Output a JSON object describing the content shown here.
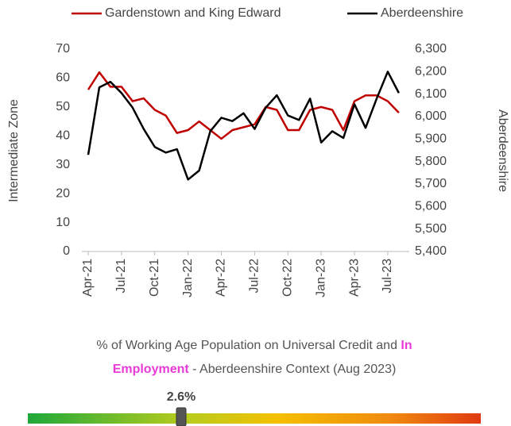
{
  "chart_data": {
    "type": "line",
    "categories": [
      "Apr-21",
      null,
      null,
      "Jul-21",
      null,
      null,
      "Oct-21",
      null,
      null,
      "Jan-22",
      null,
      null,
      "Apr-22",
      null,
      null,
      "Jul-22",
      null,
      null,
      "Oct-22",
      null,
      null,
      "Jan-23",
      null,
      null,
      "Apr-23",
      null,
      null,
      "Jul-23",
      null
    ],
    "series": [
      {
        "name": "Gardenstown and King Edward",
        "color": "#c00000",
        "values": [
          56,
          62,
          57,
          57,
          52,
          53,
          49,
          47,
          41,
          42,
          45,
          42,
          39,
          42,
          43,
          44,
          50,
          49,
          42,
          42,
          49,
          50,
          49,
          42,
          52,
          54,
          54,
          52,
          48
        ]
      },
      {
        "name": "Aberdeenshire",
        "color": "#000000",
        "axis": "y2",
        "values": [
          5830,
          6130,
          6155,
          6105,
          6040,
          5945,
          5865,
          5840,
          5855,
          5720,
          5760,
          5935,
          5995,
          5980,
          6015,
          5945,
          6040,
          6095,
          6005,
          5985,
          6080,
          5885,
          5935,
          5905,
          6055,
          5950,
          6080,
          6200,
          6105
        ]
      }
    ],
    "ylabel": "Intermediate Zone",
    "y2label": "Aberdeenshire",
    "ylim": [
      0,
      70
    ],
    "yticks": [
      0,
      10,
      20,
      30,
      40,
      50,
      60,
      70
    ],
    "y2lim": [
      5400,
      6300
    ],
    "y2ticks": [
      {
        "value": 5400,
        "label": "5,400"
      },
      {
        "value": 5500,
        "label": "5,500"
      },
      {
        "value": 5600,
        "label": "5,600"
      },
      {
        "value": 5700,
        "label": "5,700"
      },
      {
        "value": 5800,
        "label": "5,800"
      },
      {
        "value": 5900,
        "label": "5,900"
      },
      {
        "value": 6000,
        "label": "6,000"
      },
      {
        "value": 6100,
        "label": "6,100"
      },
      {
        "value": 6200,
        "label": "6,200"
      },
      {
        "value": 6300,
        "label": "6,300"
      }
    ],
    "legend": "top"
  },
  "context": {
    "caption_lines": [
      [
        "% of Working Age Population on Universal Credit and ",
        "In"
      ],
      [
        "Employment",
        " - Aberdeenshire Context (Aug 2023)"
      ]
    ],
    "value": 2.6,
    "value_label": "2.6%"
  }
}
